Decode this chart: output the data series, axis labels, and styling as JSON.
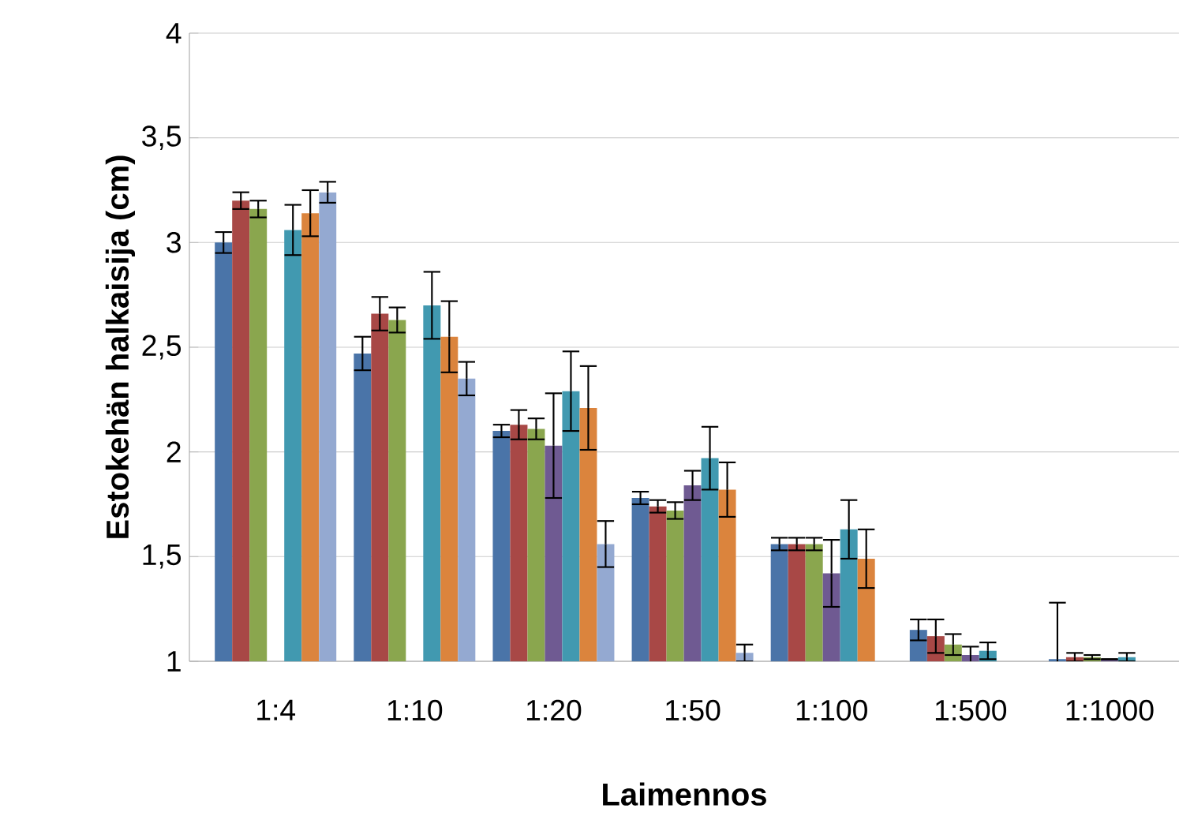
{
  "chart_data": {
    "type": "bar",
    "xlabel": "Laimennos",
    "ylabel": "Estokehän  halkaisija (cm)",
    "categories": [
      "1:4",
      "1:10",
      "1:20",
      "1:50",
      "1:100",
      "1:500",
      "1:1000"
    ],
    "series": [
      {
        "color": "#4a74a8",
        "values": [
          3.0,
          2.47,
          2.1,
          1.78,
          1.56,
          1.15,
          1.01
        ],
        "errors": [
          0.05,
          0.08,
          0.03,
          0.03,
          0.03,
          0.05,
          0.27
        ]
      },
      {
        "color": "#a84846",
        "values": [
          3.2,
          2.66,
          2.13,
          1.74,
          1.56,
          1.12,
          1.02
        ],
        "errors": [
          0.04,
          0.08,
          0.07,
          0.03,
          0.03,
          0.08,
          0.02
        ]
      },
      {
        "color": "#8aa64e",
        "values": [
          3.16,
          2.63,
          2.11,
          1.72,
          1.56,
          1.08,
          1.02
        ],
        "errors": [
          0.04,
          0.06,
          0.05,
          0.04,
          0.03,
          0.05,
          0.01
        ]
      },
      {
        "color": "#6f5a92",
        "values": [
          null,
          null,
          2.03,
          1.84,
          1.42,
          1.03,
          1.01
        ],
        "errors": [
          null,
          null,
          0.25,
          0.07,
          0.16,
          0.04,
          null
        ]
      },
      {
        "color": "#4199b0",
        "values": [
          3.06,
          2.7,
          2.29,
          1.97,
          1.63,
          1.05,
          1.02
        ],
        "errors": [
          0.12,
          0.16,
          0.19,
          0.15,
          0.14,
          0.04,
          0.02
        ]
      },
      {
        "color": "#db843d",
        "values": [
          3.14,
          2.55,
          2.21,
          1.82,
          1.49,
          null,
          null
        ],
        "errors": [
          0.11,
          0.17,
          0.2,
          0.13,
          0.14,
          null,
          null
        ]
      },
      {
        "color": "#94a9d1",
        "values": [
          3.24,
          2.35,
          1.56,
          1.04,
          null,
          null,
          null
        ],
        "errors": [
          0.05,
          0.08,
          0.11,
          0.04,
          null,
          null,
          null
        ]
      }
    ],
    "ylim": [
      1,
      4
    ],
    "yticks": [
      1,
      {
        "value": 1.5,
        "label": "1,5"
      },
      2,
      {
        "value": 2.5,
        "label": "2,5"
      },
      3,
      {
        "value": 3.5,
        "label": "3,5"
      },
      4
    ],
    "grid": "y"
  }
}
